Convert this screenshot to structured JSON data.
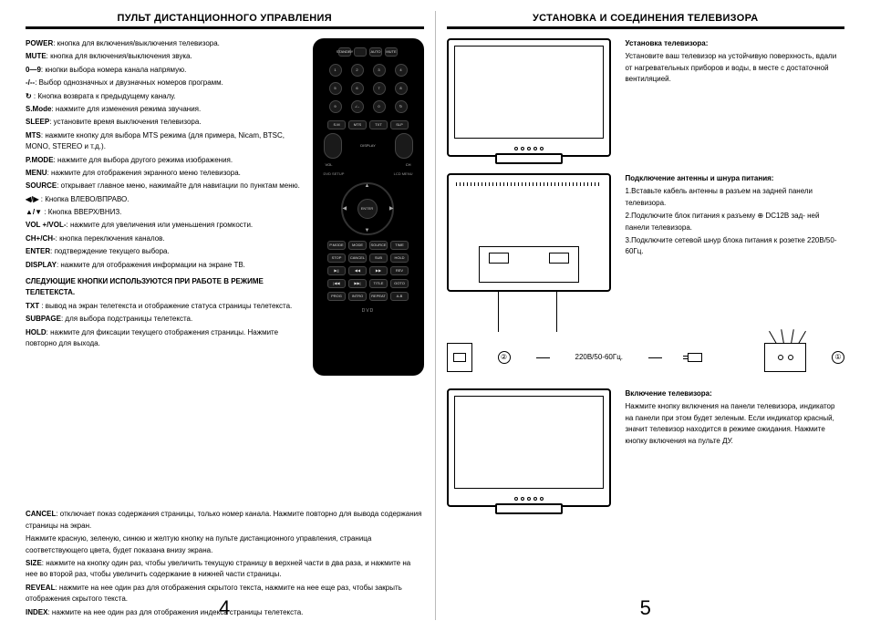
{
  "leftPage": {
    "title": "ПУЛЬТ ДИСТАНЦИОННОГО УПРАВЛЕНИЯ",
    "pageNumber": "4",
    "lines": [
      {
        "b": "POWER",
        "t": ": кнопка для включения/выключения телевизора."
      },
      {
        "b": "MUTE",
        "t": ": кнопка для включения/выключения звука."
      },
      {
        "b": "0—9",
        "t": ": кнопки выбора номера канала напрямую."
      },
      {
        "b": "-/--",
        "t": ": Выбор однозначных и двузначных номеров программ."
      },
      {
        "b": "↻",
        "t": " : Кнопка возврата к предыдущему каналу."
      },
      {
        "b": "S.Mode",
        "t": ": нажмите для изменения режима звучания."
      },
      {
        "b": "SLEEP",
        "t": ": установите время выключения телевизора."
      },
      {
        "b": "MTS",
        "t": ": нажмите кнопку для выбора MTS режима (для примера, Nicam, BTSC, MONO, STEREO и т.д.)."
      },
      {
        "b": "P.MODE",
        "t": ": нажмите для выбора другого режима изображения."
      },
      {
        "b": "MENU",
        "t": ": нажмите для отображения экранного меню телевизора."
      },
      {
        "b": "SOURCE",
        "t": ": открывает главное меню, нажимайте для навигации по пунктам меню."
      },
      {
        "b": "◀/▶",
        "t": " : Кнопка ВЛЕВО/ВПРАВО."
      },
      {
        "b": "▲/▼",
        "t": " : Кнопка ВВЕРХ/ВНИЗ."
      },
      {
        "b": "VOL +/VOL-",
        "t": ": нажмите для увеличения или уменьшения громкости."
      },
      {
        "b": "CH+/CH-",
        "t": ": кнопка переключения каналов."
      },
      {
        "b": "ENTER",
        "t": ": подтверждение текущего выбора."
      },
      {
        "b": "DISPLAY",
        "t": ":  нажмите для отображения информации на экране ТВ."
      }
    ],
    "teletextHeading": "СЛЕДУЮЩИЕ КНОПКИ ИСПОЛЬЗУЮТСЯ ПРИ РАБОТЕ В РЕЖИМЕ ТЕЛЕТЕКСТА.",
    "lines2": [
      {
        "b": "TXT",
        "t": " : вывод на экран телетекста и отображение статуса страницы телетекста."
      },
      {
        "b": "SUBPAGE",
        "t": ": для выбора подстраницы телетекста."
      },
      {
        "b": "HOLD",
        "t": ": нажмите для фиксации текущего отображения страницы. Нажмите повторно для выхода."
      }
    ],
    "fullWidthLines": [
      {
        "b": "CANCEL",
        "t": ": отключает показ содержания страницы, только номер канала. Нажмите повторно для вывода содержания страницы на экран."
      },
      {
        "b": "",
        "t": "Нажмите красную, зеленую, синюю и желтую кнопку на пульте дистанционного управления, страница соответствующего цвета, будет показана внизу экрана."
      },
      {
        "b": "SIZE",
        "t": ": нажмите на кнопку один раз, чтобы увеличить текущую страницу в верхней части в два раза, и нажмите на нее во второй раз, чтобы увеличить содержание в нижней части страницы."
      },
      {
        "b": "REVEAL",
        "t": ": нажмите на нее один раз для отображения скрытого текста, нажмите на нее еще раз, чтобы закрыть отображения скрытого текста."
      },
      {
        "b": "INDEX",
        "t": ": нажмите на нее один раз для отображения индекса страницы телетекста."
      }
    ],
    "remote": {
      "topRow": [
        "STANDBY",
        "",
        "AUTO",
        "MUTE"
      ],
      "nums": [
        "1",
        "2",
        "3",
        "4",
        "5",
        "6",
        "7",
        "8",
        "9",
        "-/--",
        "0",
        "↻"
      ],
      "midA": [
        "S.M",
        "MTS",
        "TXT",
        "SLP"
      ],
      "midB": "DISPLAY",
      "volLbl": "VOL",
      "chLbl": "CH",
      "enter": "ENTER",
      "sideL": "DVD SETUP",
      "sideR": "LCD MENU",
      "rowC": [
        "P.MODE",
        "MODE",
        "SOURCE",
        "TIME"
      ],
      "rowD": [
        "STOP",
        "CANCEL",
        "SUB",
        "HOLD"
      ],
      "rowE": [
        "▶||",
        "◀◀",
        "▶▶",
        "REV"
      ],
      "rowF": [
        "|◀◀",
        "▶▶|",
        "TITLE",
        "GOTO"
      ],
      "rowG": [
        "PROG",
        "INTRO",
        "REPEAT",
        "A-B"
      ],
      "label": "DVD"
    }
  },
  "rightPage": {
    "title": "УСТАНОВКА И СОЕДИНЕНИЯ ТЕЛЕВИЗОРА",
    "pageNumber": "5",
    "sec1": {
      "heading": "Установка телевизора:",
      "lines": [
        "Установите ваш телевизор  на устойчивую поверхность, вдали от нагревательных приборов и воды, в месте с достаточной вентиляцией."
      ]
    },
    "sec2": {
      "heading": "Подключение антенны и шнура питания:",
      "lines": [
        "1.Вставьте кабель антенны в разъем на задней панели телевизора.",
        "2.Подключите блок питания к разъему ⊕ DC12В зад- ней панели телевизора.",
        "3.Подключите сетевой шнур блока питания к розетке 220В/50-60Гц."
      ],
      "midLabel": "220В/50-60Гц.",
      "num1": "①",
      "num2": "②"
    },
    "sec3": {
      "heading": "Включение телевизора:",
      "lines": [
        "Нажмите кнопку включения на панели телевизора, индикатор на панели при этом будет зеленым. Если индикатор красный, значит телевизор находится в режиме ожидания. Нажмите кнопку включения на пульте ДУ."
      ]
    }
  },
  "colors": {
    "black": "#000000",
    "white": "#ffffff"
  }
}
